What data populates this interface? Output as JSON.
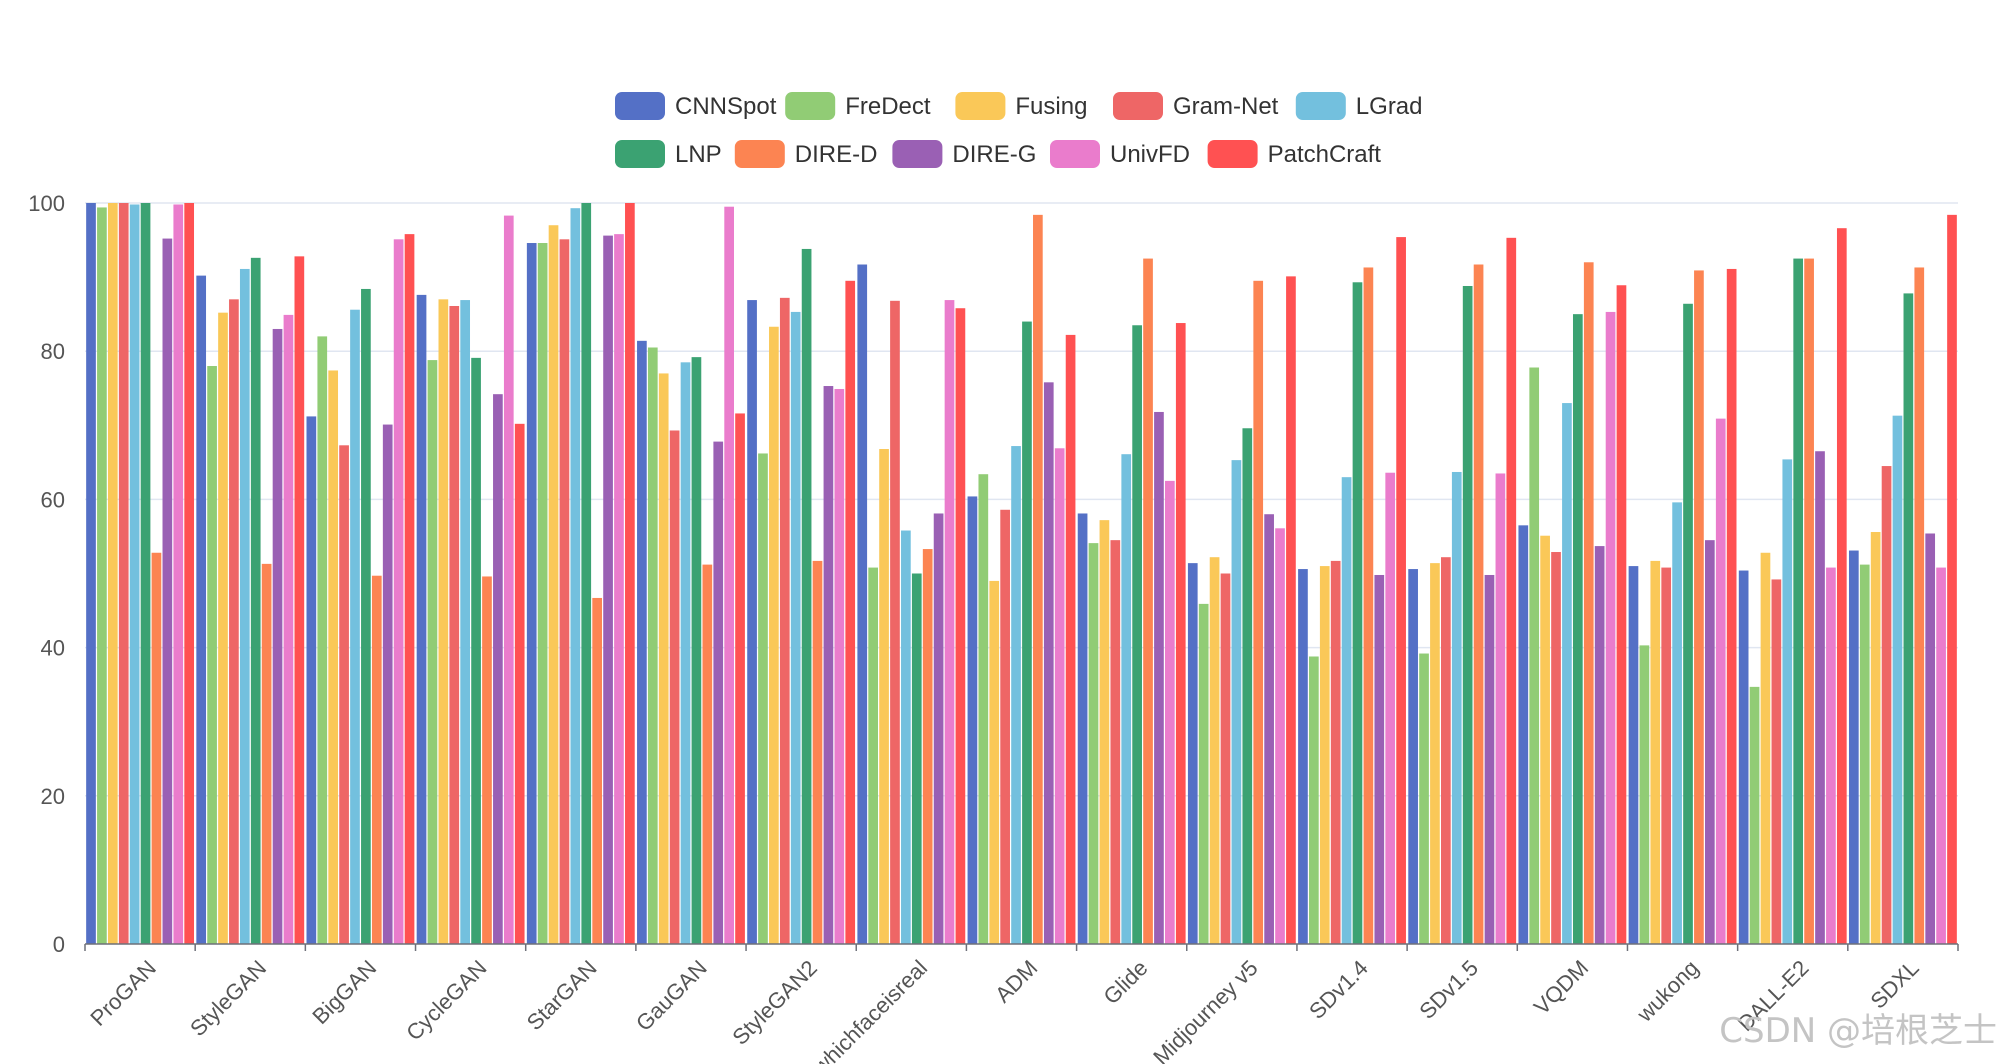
{
  "chart_data": {
    "type": "bar",
    "categories": [
      "ProGAN",
      "StyleGAN",
      "BigGAN",
      "CycleGAN",
      "StarGAN",
      "GauGAN",
      "StyleGAN2",
      "whichfaceisreal",
      "ADM",
      "Glide",
      "Midjourney v5",
      "SDv1.4",
      "SDv1.5",
      "VQDM",
      "wukong",
      "DALL-E2",
      "SDXL"
    ],
    "ylim": [
      0,
      100
    ],
    "yticks": [
      0,
      20,
      40,
      60,
      80,
      100
    ],
    "grid": true,
    "legend_position": "top-center",
    "series": [
      {
        "name": "CNNSpot",
        "color": "#5470c6",
        "values": [
          100,
          90.2,
          71.2,
          87.6,
          94.6,
          81.4,
          86.9,
          91.7,
          60.4,
          58.1,
          51.4,
          50.6,
          50.6,
          56.5,
          51.0,
          50.4,
          53.1
        ]
      },
      {
        "name": "FreDect",
        "color": "#91cc75",
        "values": [
          99.4,
          78.0,
          82.0,
          78.8,
          94.6,
          80.5,
          66.2,
          50.8,
          63.4,
          54.1,
          45.9,
          38.8,
          39.2,
          77.8,
          40.3,
          34.7,
          51.2
        ]
      },
      {
        "name": "Fusing",
        "color": "#fac858",
        "values": [
          100,
          85.2,
          77.4,
          87.0,
          97.0,
          77.0,
          83.3,
          66.8,
          49.0,
          57.2,
          52.2,
          51.0,
          51.4,
          55.1,
          51.7,
          52.8,
          55.6
        ]
      },
      {
        "name": "Gram-Net",
        "color": "#ee6666",
        "values": [
          100,
          87.0,
          67.3,
          86.1,
          95.1,
          69.3,
          87.2,
          86.8,
          58.6,
          54.5,
          50.0,
          51.7,
          52.2,
          52.9,
          50.8,
          49.2,
          64.5
        ]
      },
      {
        "name": "LGrad",
        "color": "#73c0de",
        "values": [
          99.8,
          91.1,
          85.6,
          86.9,
          99.3,
          78.5,
          85.3,
          55.8,
          67.2,
          66.1,
          65.3,
          63.0,
          63.7,
          73.0,
          59.6,
          65.4,
          71.3
        ]
      },
      {
        "name": "LNP",
        "color": "#3ba272",
        "values": [
          100,
          92.6,
          88.4,
          79.1,
          100,
          79.2,
          93.8,
          50.0,
          84.0,
          83.5,
          69.6,
          89.3,
          88.8,
          85.0,
          86.4,
          92.5,
          87.8
        ]
      },
      {
        "name": "DIRE-D",
        "color": "#fc8452",
        "values": [
          52.8,
          51.3,
          49.7,
          49.6,
          46.7,
          51.2,
          51.7,
          53.3,
          98.4,
          92.5,
          89.5,
          91.3,
          91.7,
          92.0,
          90.9,
          92.5,
          91.3
        ]
      },
      {
        "name": "DIRE-G",
        "color": "#9a60b4",
        "values": [
          95.2,
          83.0,
          70.1,
          74.2,
          95.6,
          67.8,
          75.3,
          58.1,
          75.8,
          71.8,
          58.0,
          49.8,
          49.8,
          53.7,
          54.5,
          66.5,
          55.4
        ]
      },
      {
        "name": "UnivFD",
        "color": "#ea7ccc",
        "values": [
          99.8,
          84.9,
          95.1,
          98.3,
          95.8,
          99.5,
          74.9,
          86.9,
          66.9,
          62.5,
          56.1,
          63.6,
          63.5,
          85.3,
          70.9,
          50.8,
          50.8
        ]
      },
      {
        "name": "PatchCraft",
        "color": "#ff5152",
        "values": [
          100,
          92.8,
          95.8,
          70.2,
          100,
          71.6,
          89.5,
          85.8,
          82.2,
          83.8,
          90.1,
          95.4,
          95.3,
          88.9,
          91.1,
          96.6,
          98.4
        ]
      }
    ]
  },
  "watermark": "CSDN @培根芝士"
}
